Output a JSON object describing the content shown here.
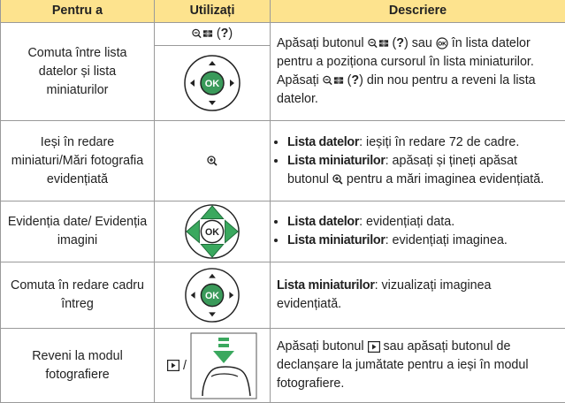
{
  "table": {
    "headers": [
      "Pentru a",
      "Utilizați",
      "Descriere"
    ],
    "ok_label": "OK",
    "rows": [
      {
        "action": "Comuta între lista datelor și lista miniaturilor",
        "control": [
          " (",
          "?",
          ")"
        ],
        "description": [
          "Apăsați butonul ",
          " (",
          "?",
          ") sau ",
          " în lista datelor pentru a poziționa cursorul în lista miniaturilor. Apăsați ",
          " (",
          "?",
          ") din nou pentru a reveni la lista datelor."
        ]
      },
      {
        "action": "Ieși în redare miniaturi/Mări fotografia evidențiată",
        "items": [
          {
            "term": "Lista datelor",
            "text": ": ieșiți în redare 72 de cadre."
          },
          {
            "term": "Lista miniaturilor",
            "text": [
              ": apăsați și țineți apăsat butonul ",
              " pentru a mări imaginea evidențiată."
            ]
          }
        ]
      },
      {
        "action": "Evidenția date/ Evidenția imagini",
        "items": [
          {
            "term": "Lista datelor",
            "text": ": evidențiați data."
          },
          {
            "term": "Lista miniaturilor",
            "text": ": evidențiați imaginea."
          }
        ]
      },
      {
        "action": "Comuta în redare cadru întreg",
        "term": "Lista miniaturilor",
        "text": ": vizualizați imaginea evidențiată."
      },
      {
        "action": "Reveni la modul fotografiere",
        "control": " /",
        "description": [
          "Apăsați butonul ",
          " sau apăsați butonul de declanșare la jumătate pentru a ieși în modul fotografiere."
        ]
      }
    ]
  }
}
